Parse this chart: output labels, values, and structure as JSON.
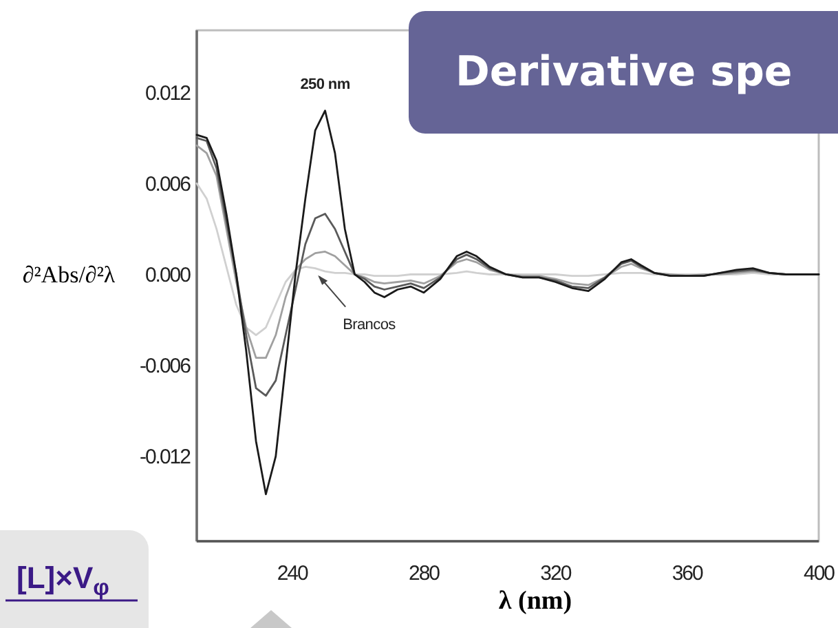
{
  "chart_data": {
    "type": "line",
    "title": "Derivative spe",
    "xlabel": "λ (nm)",
    "ylabel": "∂²Abs/∂²λ",
    "x": [
      211,
      214,
      217,
      220,
      223,
      226,
      229,
      232,
      235,
      238,
      241,
      244,
      247,
      250,
      253,
      256,
      259,
      262,
      265,
      268,
      272,
      276,
      280,
      285,
      290,
      293,
      296,
      300,
      305,
      310,
      315,
      320,
      325,
      330,
      335,
      340,
      343,
      346,
      350,
      355,
      360,
      365,
      370,
      375,
      380,
      385,
      390,
      395,
      400
    ],
    "series": [
      {
        "color": "#d0d0d0",
        "values": [
          0.006,
          0.005,
          0.003,
          0.0005,
          -0.002,
          -0.0035,
          -0.004,
          -0.0035,
          -0.002,
          -0.0005,
          0.0003,
          0.0005,
          0.0004,
          0.0002,
          0.0001,
          0.0001,
          0,
          0,
          -0.0001,
          -0.0001,
          -0.0001,
          0,
          0,
          0,
          0.0001,
          0.0002,
          0.0001,
          0,
          0,
          0,
          0,
          0,
          -0.0001,
          -0.0001,
          0,
          0.0001,
          0.0001,
          0.0001,
          0,
          0,
          0,
          0,
          0,
          0,
          0.0001,
          0,
          0,
          0,
          0
        ]
      },
      {
        "color": "#a0a0a0",
        "values": [
          0.0085,
          0.008,
          0.0065,
          0.003,
          -0.0005,
          -0.0035,
          -0.0055,
          -0.0055,
          -0.004,
          -0.0015,
          0.0003,
          0.001,
          0.0014,
          0.0015,
          0.0012,
          0.0006,
          0,
          -0.0002,
          -0.0005,
          -0.0006,
          -0.0005,
          -0.0004,
          -0.0006,
          -0.0001,
          0.0008,
          0.001,
          0.0008,
          0.0003,
          0,
          -0.0001,
          -0.0001,
          -0.0003,
          -0.0006,
          -0.0007,
          -0.0002,
          0.0005,
          0.0007,
          0.0004,
          0.0001,
          0,
          -0.0001,
          0,
          0,
          0.0001,
          0.0002,
          0.0001,
          0,
          0,
          0
        ]
      },
      {
        "color": "#5a5a5a",
        "values": [
          0.009,
          0.0088,
          0.007,
          0.0035,
          0,
          -0.004,
          -0.0075,
          -0.008,
          -0.007,
          -0.004,
          -0.001,
          0.002,
          0.0037,
          0.004,
          0.003,
          0.0015,
          0,
          -0.0003,
          -0.0008,
          -0.001,
          -0.0008,
          -0.0006,
          -0.0009,
          -0.0002,
          0.001,
          0.0013,
          0.001,
          0.0004,
          0,
          -0.0002,
          -0.0002,
          -0.0004,
          -0.0008,
          -0.0009,
          -0.0002,
          0.0007,
          0.0009,
          0.0005,
          0.0001,
          -0.0001,
          -0.0001,
          -0.0001,
          0.0001,
          0.0002,
          0.0003,
          0.0001,
          0,
          0,
          0
        ]
      },
      {
        "color": "#1a1a1a",
        "values": [
          0.0092,
          0.009,
          0.0075,
          0.004,
          0,
          -0.005,
          -0.011,
          -0.0145,
          -0.012,
          -0.006,
          0,
          0.005,
          0.0095,
          0.0108,
          0.008,
          0.003,
          0,
          -0.0005,
          -0.0012,
          -0.0015,
          -0.001,
          -0.0008,
          -0.0012,
          -0.0003,
          0.0012,
          0.0015,
          0.0012,
          0.0005,
          0,
          -0.0002,
          -0.0002,
          -0.0005,
          -0.0009,
          -0.0011,
          -0.0003,
          0.0008,
          0.001,
          0.0006,
          0.0001,
          -0.0001,
          -0.0001,
          -0.0001,
          0.0001,
          0.0003,
          0.0004,
          0.0001,
          0,
          0,
          0
        ]
      }
    ],
    "xlim": [
      211,
      400
    ],
    "xticks": [
      240,
      280,
      320,
      360,
      400
    ],
    "ylim": [
      -0.0176,
      0.0161
    ],
    "yticks": [
      {
        "value": 0.012,
        "label": "0.012"
      },
      {
        "value": 0.006,
        "label": "0.006"
      },
      {
        "value": 0,
        "label": "0.000"
      },
      {
        "value": -0.006,
        "label": "-0.006"
      },
      {
        "value": -0.012,
        "label": "-0.012"
      }
    ],
    "annotations": [
      {
        "text": "250 nm",
        "x": 250,
        "y": 0.0108
      },
      {
        "text": "Brancos",
        "x": 247,
        "y": 0.0004
      },
      "[L]×V$_{φ}$"
    ]
  }
}
